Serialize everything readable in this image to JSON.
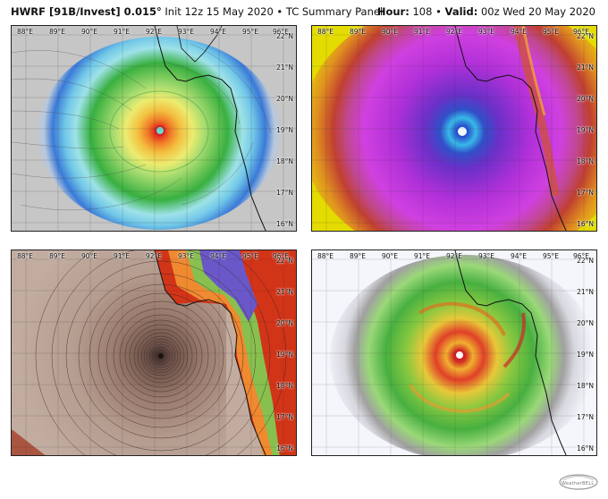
{
  "header": {
    "model_title": "HWRF [91B/Invest] 0.015°",
    "init_text": "Init 12z 15 May 2020 • TC Summary Panel",
    "hour_label": "Hour:",
    "hour_value": "108",
    "valid_label": "Valid:",
    "valid_value": "00z Wed 20 May 2020"
  },
  "lon_labels": [
    "88°E",
    "89°E",
    "90°E",
    "91°E",
    "92°E",
    "93°E",
    "94°E",
    "95°E",
    "96°E"
  ],
  "lat_labels": [
    "22°N",
    "21°N",
    "20°N",
    "19°N",
    "18°N",
    "17°N",
    "16°N"
  ],
  "panels": [
    {
      "id": "wind",
      "bg": "#c9c9c9"
    },
    {
      "id": "ir",
      "bg": "#e4d800"
    },
    {
      "id": "temp",
      "bg": "#b39a8e"
    },
    {
      "id": "reflectivity",
      "bg": "#f4f6fb"
    }
  ],
  "logo_text": "WeatherBELL"
}
